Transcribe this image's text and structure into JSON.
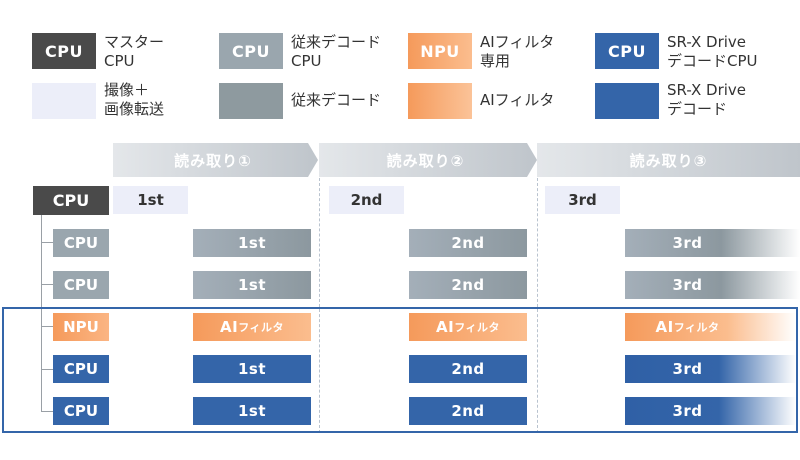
{
  "legend": [
    {
      "swatch_text": "CPU",
      "text": "マスター\nCPU",
      "color": "#4a4a4a"
    },
    {
      "swatch_text": "",
      "text": "撮像＋\n画像転送",
      "color": "#eceef9"
    },
    {
      "swatch_text": "CPU",
      "text": "従来デコード\nCPU",
      "color": "#9aa6ae"
    },
    {
      "swatch_text": "",
      "text": "従来デコード",
      "color": "#8e9a9f"
    },
    {
      "swatch_text": "NPU",
      "text": "AIフィルタ\n専用",
      "color": "#f7a062"
    },
    {
      "swatch_text": "",
      "text": "AIフィルタ",
      "color": "#f7a062"
    },
    {
      "swatch_text": "CPU",
      "text": "SR-X Drive\nデコードCPU",
      "color": "#3465a9"
    },
    {
      "swatch_text": "",
      "text": "SR-X Drive\nデコード",
      "color": "#3465a9"
    }
  ],
  "stages": [
    "読み取り①",
    "読み取り②",
    "読み取り③"
  ],
  "master_label": "CPU",
  "capture_labels": [
    "1st",
    "2nd",
    "3rd"
  ],
  "rows": [
    {
      "label": "CPU",
      "type": "conventional",
      "blocks": [
        "1st",
        "2nd",
        "3rd"
      ]
    },
    {
      "label": "CPU",
      "type": "conventional",
      "blocks": [
        "1st",
        "2nd",
        "3rd"
      ]
    },
    {
      "label": "NPU",
      "type": "ai",
      "blocks": [
        {
          "big": "AI",
          "small": "フィルタ"
        },
        {
          "big": "AI",
          "small": "フィルタ"
        },
        {
          "big": "AI",
          "small": "フィルタ"
        }
      ]
    },
    {
      "label": "CPU",
      "type": "srx",
      "blocks": [
        "1st",
        "2nd",
        "3rd"
      ]
    },
    {
      "label": "CPU",
      "type": "srx",
      "blocks": [
        "1st",
        "2nd",
        "3rd"
      ]
    }
  ],
  "colors": {
    "master": "#4a4a4a",
    "capture": "#eceef9",
    "conventional": "#9aa6ae",
    "ai": "#f7a062",
    "srx": "#3465a9",
    "stage_arrow": "#c9ced3",
    "highlight_border": "#3465a9"
  }
}
